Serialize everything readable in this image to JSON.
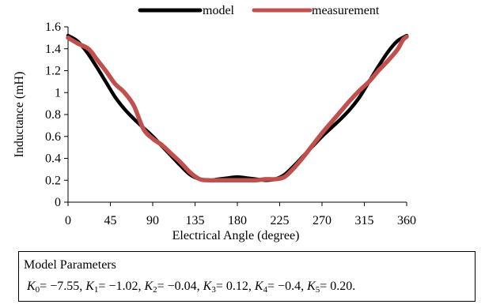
{
  "chart_data": {
    "type": "line",
    "xlabel": "Electrical Angle (degree)",
    "ylabel": "Inductance (mH)",
    "xlim": [
      0,
      360
    ],
    "ylim": [
      0,
      1.6
    ],
    "xticks": [
      0,
      45,
      90,
      135,
      180,
      225,
      270,
      315,
      360
    ],
    "yticks": [
      0,
      0.2,
      0.4,
      0.6,
      0.8,
      1,
      1.2,
      1.4,
      1.6
    ],
    "xtick_labels": [
      "0",
      "45",
      "90",
      "135",
      "180",
      "225",
      "270",
      "315",
      "360"
    ],
    "ytick_labels": [
      "0",
      "0.2",
      "0.4",
      "0.6",
      "0.8",
      "1",
      "1.2",
      "1.4",
      "1.6"
    ],
    "grid": false,
    "legend_position": "top",
    "series": [
      {
        "name": "model",
        "color": "#000000",
        "x": [
          0,
          10,
          20,
          30,
          40,
          50,
          60,
          70,
          80,
          90,
          100,
          110,
          120,
          130,
          140,
          150,
          160,
          170,
          180,
          190,
          200,
          210,
          220,
          230,
          240,
          250,
          260,
          270,
          280,
          290,
          300,
          310,
          320,
          330,
          340,
          350,
          360
        ],
        "y": [
          1.52,
          1.47,
          1.37,
          1.24,
          1.1,
          0.96,
          0.85,
          0.76,
          0.68,
          0.6,
          0.51,
          0.42,
          0.33,
          0.25,
          0.21,
          0.2,
          0.21,
          0.22,
          0.23,
          0.22,
          0.21,
          0.2,
          0.21,
          0.25,
          0.33,
          0.42,
          0.51,
          0.6,
          0.68,
          0.76,
          0.85,
          0.96,
          1.1,
          1.24,
          1.37,
          1.47,
          1.52
        ]
      },
      {
        "name": "measurement",
        "color": "#c0504d",
        "x": [
          0,
          10,
          20,
          25,
          30,
          40,
          50,
          60,
          70,
          80,
          90,
          100,
          110,
          120,
          130,
          140,
          150,
          160,
          170,
          180,
          190,
          200,
          210,
          220,
          230,
          240,
          250,
          260,
          270,
          280,
          290,
          300,
          310,
          320,
          330,
          340,
          350,
          356,
          360
        ],
        "y": [
          1.5,
          1.45,
          1.41,
          1.37,
          1.31,
          1.2,
          1.08,
          1.0,
          0.88,
          0.67,
          0.58,
          0.52,
          0.44,
          0.36,
          0.27,
          0.21,
          0.2,
          0.2,
          0.2,
          0.2,
          0.2,
          0.2,
          0.21,
          0.21,
          0.23,
          0.31,
          0.41,
          0.52,
          0.63,
          0.73,
          0.83,
          0.93,
          1.02,
          1.1,
          1.2,
          1.29,
          1.39,
          1.48,
          1.51
        ]
      }
    ]
  },
  "params": {
    "title": "Model Parameters",
    "items": [
      {
        "k": "K",
        "sub": "0",
        "value": "= −7.55"
      },
      {
        "k": "K",
        "sub": "1",
        "value": "= −1.02"
      },
      {
        "k": "K",
        "sub": "2",
        "value": "= −0.04"
      },
      {
        "k": "K",
        "sub": "3",
        "value": "= 0.12"
      },
      {
        "k": "K",
        "sub": "4",
        "value": "= −0.4"
      },
      {
        "k": "K",
        "sub": "5",
        "value": "= 0.20."
      }
    ]
  }
}
